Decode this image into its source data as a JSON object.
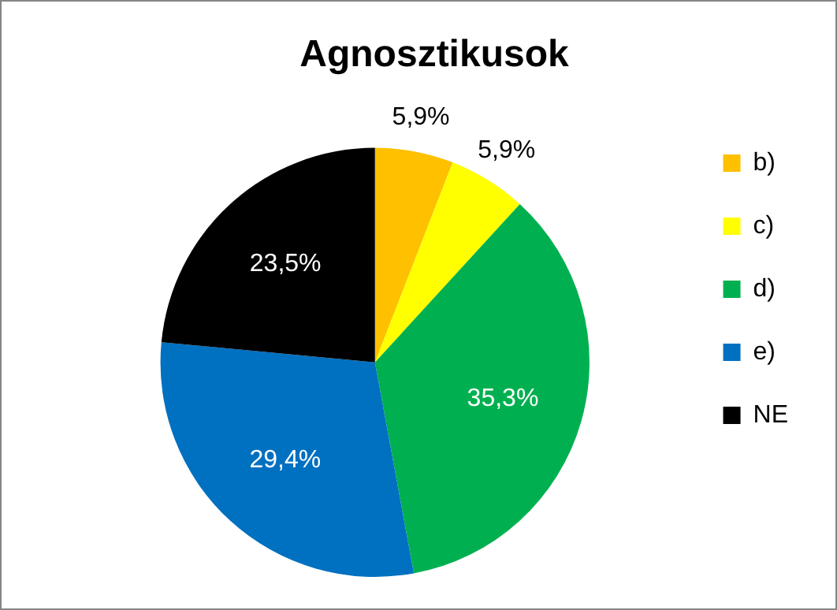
{
  "chart_data": {
    "type": "pie",
    "title": "Agnosztikusok",
    "categories": [
      "b)",
      "c)",
      "d)",
      "e)",
      "NE"
    ],
    "values": [
      5.9,
      5.9,
      35.3,
      29.4,
      23.5
    ],
    "colors": [
      "#ffc000",
      "#ffff00",
      "#00b050",
      "#0070c0",
      "#000000"
    ],
    "value_labels": [
      "5,9%",
      "5,9%",
      "35,3%",
      "29,4%",
      "23,5%"
    ],
    "legend": "right"
  }
}
